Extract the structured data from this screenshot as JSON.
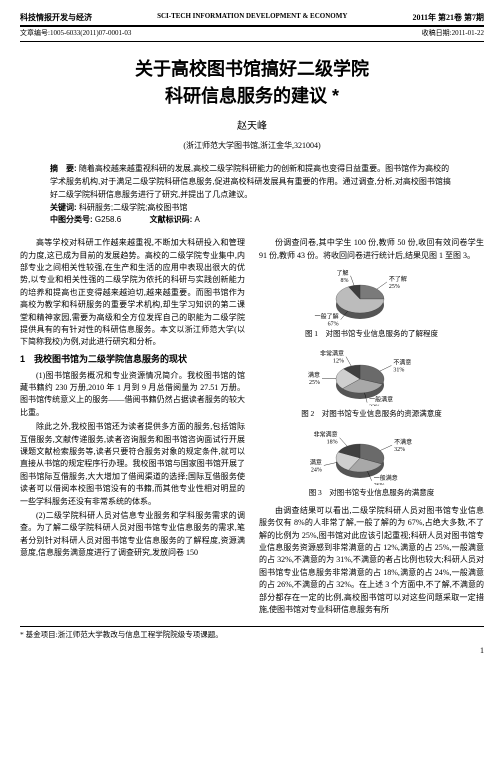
{
  "header": {
    "left": "科技情报开发与经济",
    "center": "SCI-TECH INFORMATION DEVELOPMENT & ECONOMY",
    "right": "2011年 第21卷 第7期"
  },
  "meta": {
    "left": "文章编号:1005-6033(2011)07-0001-03",
    "right": "收稿日期:2011-01-22"
  },
  "title_line1": "关于高校图书馆搞好二级学院",
  "title_line2": "科研信息服务的建议 *",
  "author": "赵天峰",
  "affiliation": "(浙江师范大学图书馆,浙江金华,321004)",
  "abstract": {
    "label": "摘　要:",
    "text": "随着高校越来越重视科研的发展,高校二级学院科研能力的创新和提高也变得日益重要。图书馆作为高校的学术服务机构,对于满足二级学院科研信息服务,促进高校科研发展具有重要的作用。通过调查,分析,对高校图书馆搞好二级学院科研信息服务进行了研究,并提出了几点建议。"
  },
  "keywords": {
    "label": "关键词:",
    "text": "科研服务;二级学院;高校图书馆"
  },
  "clc": {
    "label": "中图分类号:",
    "value": "G258.6",
    "doc_label": "文献标识码:",
    "doc_value": "A"
  },
  "left_col": {
    "intro_p1": "高等学校对科研工作越来越重视,不断加大科研投入和管理的力度,这已成为目前的发展趋势。高校的二级学院专业集中,内部专业之间相关性较强,在生产和生活的应用中表现出很大的优势,以专业和相关性强的二级学院为依托的科研与实践创新能力的培养和提高也正变得越来越迫切,越来越重要。而图书馆作为高校为教学和科研服务的重要学术机构,却生学习知识的第二课堂和精神家园,需要为高级和全方位发挥自己的职能为二级学院提供具有的有针对性的科研信息服务。本文以浙江师范大学(以下简称我校)为例,对此进行研究和分析。",
    "sec1": "1　我校图书馆为二级学院信息服务的现状",
    "p11": "(1)图书馆服务概况和专业资源情况简介。我校图书馆的馆藏书籍约 230 万册,2010 年 1 月到 9 月总借阅量为 27.51 万册。图书馆传统意义上的服务——借阅书籍仍然占据读者服务的较大比重。",
    "p12": "除此之外,我校图书馆还为读者提供多方面的服务,包括馆际互借服务,文献传递服务,读者咨询服务和图书馆咨询面试行开展课题文献检索服务等,读者只要符合服务对象的规定条件,就可以直接从书馆的规定程序行办理。我校图书馆与国家图书馆开展了图书馆际互借服务,大大增加了借阅渠道的选择;国际互借服务使读者可以借阅本校图书馆没有的书籍,而其他专业性相对明显的一些学科服务还没有非常系统的体系。",
    "p13": "(2)二级学院科研人员对信息专业服务和学科服务需求的调查。为了解二级学院科研人员对图书馆专业信息服务的需求,笔者分别针对科研人员对图书馆专业信息服务的了解程度,资源满意度,信息服务满意度进行了调查研究,发放问卷 150"
  },
  "right_col": {
    "intro": "份调查问卷,其中学生 100 份,教师 50 份,收回有效问卷学生 91 份,教师 43 份。将收回问卷进行统计后,结果见图 1 至图 3。",
    "fig1": {
      "caption": "图 1　对图书馆专业信息服务的了解程度",
      "labels": {
        "a": "不了解",
        "b": "一般了解",
        "c": "了解"
      },
      "values": {
        "a": 25,
        "b": 67,
        "c": 8
      },
      "colors": {
        "a": "#7a7a7a",
        "b": "#bcbcbc",
        "c": "#3d3d3d"
      }
    },
    "fig2": {
      "caption": "图 2　对图书馆专业信息服务的资源满意度",
      "labels": {
        "a": "不满意",
        "b": "一般满意",
        "c": "满意",
        "d": "非常满意"
      },
      "values": {
        "a": 31,
        "b": 32,
        "c": 25,
        "d": 12
      },
      "colors": {
        "a": "#6a6a6a",
        "b": "#a8a8a8",
        "c": "#cfcfcf",
        "d": "#404040"
      }
    },
    "fig3": {
      "caption": "图 3　对图书馆专业信息服务的满意度",
      "labels": {
        "a": "不满意",
        "b": "一般满意",
        "c": "满意",
        "d": "非常满意"
      },
      "values": {
        "a": 32,
        "b": 26,
        "c": 24,
        "d": 18
      },
      "colors": {
        "a": "#6a6a6a",
        "b": "#a8a8a8",
        "c": "#cfcfcf",
        "d": "#404040"
      }
    },
    "p_after": "由调查结果可以看出,二级学院科研人员对图书馆专业信息服务仅有 8%的人非常了解,一般了解的为 67%,占绝大多数,不了解的比例为 25%,图书馆对此应该引起重视;科研人员对图书馆专业信息服务资源感到非常满意的占 12%,满意的占 25%,一般满意的占 32%,不满意的为 31%,不满意的者占比例也较大;科研人员对图书馆专业信息服务非常满意的占 18%,满意的占 24%,一般满意的占 26%,不满意的占 32%。在上述 3 个方面中,不了解,不满意的部分都存在一定的比例,高校图书馆可以对这些问题采取一定措施,使图书馆对专业科研信息服务有所"
  },
  "footnote": "* 基金项目:浙江师范大学教改与信息工程学院院级专项课题。",
  "pagenum": "1"
}
